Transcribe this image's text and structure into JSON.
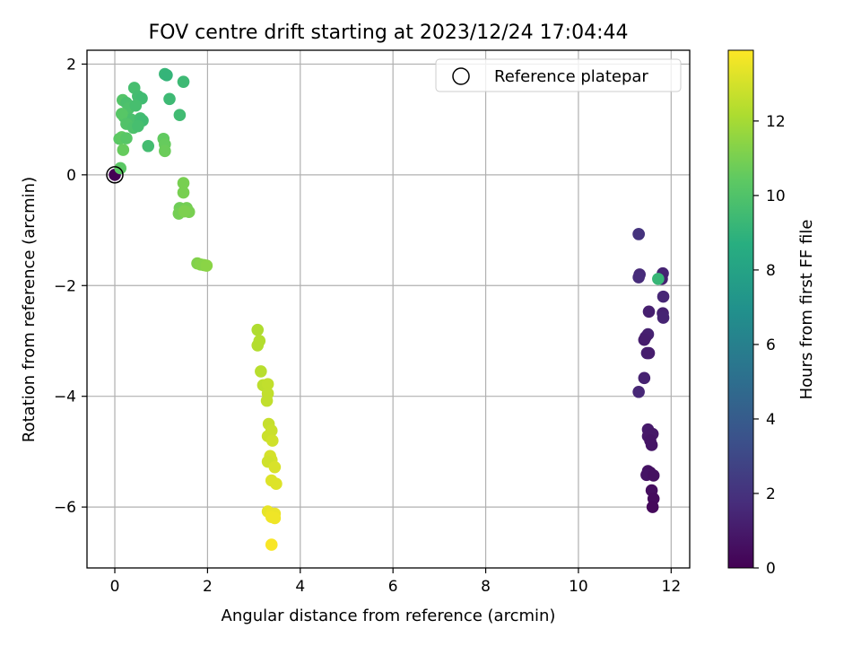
{
  "chart_data": {
    "type": "scatter",
    "title": "FOV centre drift starting at 2023/12/24 17:04:44",
    "xlabel": "Angular distance from reference (arcmin)",
    "ylabel": "Rotation from reference (arcmin)",
    "xlim": [
      -0.6,
      12.4
    ],
    "ylim": [
      -7.1,
      2.25
    ],
    "xticks": [
      0,
      2,
      4,
      6,
      8,
      10,
      12
    ],
    "yticks": [
      -6,
      -4,
      -2,
      0,
      2
    ],
    "grid": true,
    "legend": {
      "placement": "top-right",
      "entries": [
        "Reference platepar"
      ]
    },
    "reference_point": {
      "x": 0,
      "y": 0
    },
    "colorbar": {
      "label": "Hours from first FF file",
      "range": [
        0,
        13.9
      ],
      "ticks": [
        0,
        2,
        4,
        6,
        8,
        10,
        12
      ],
      "colormap": "viridis"
    },
    "points": [
      {
        "x": 0.0,
        "y": 0.0,
        "h": 0.0
      },
      {
        "x": 11.82,
        "y": -1.78,
        "h": 1.4
      },
      {
        "x": 11.8,
        "y": -1.88,
        "h": 1.3
      },
      {
        "x": 11.83,
        "y": -2.2,
        "h": 1.5
      },
      {
        "x": 11.82,
        "y": -2.5,
        "h": 1.3
      },
      {
        "x": 11.83,
        "y": -2.58,
        "h": 1.4
      },
      {
        "x": 11.52,
        "y": -2.47,
        "h": 1.2
      },
      {
        "x": 11.5,
        "y": -2.88,
        "h": 1.3
      },
      {
        "x": 11.45,
        "y": -2.93,
        "h": 1.2
      },
      {
        "x": 11.42,
        "y": -2.98,
        "h": 1.1
      },
      {
        "x": 11.48,
        "y": -3.22,
        "h": 1.2
      },
      {
        "x": 11.52,
        "y": -3.22,
        "h": 1.1
      },
      {
        "x": 11.42,
        "y": -3.67,
        "h": 1.3
      },
      {
        "x": 11.3,
        "y": -3.92,
        "h": 1.5
      },
      {
        "x": 11.5,
        "y": -4.6,
        "h": 1.0
      },
      {
        "x": 11.6,
        "y": -4.68,
        "h": 0.9
      },
      {
        "x": 11.5,
        "y": -4.72,
        "h": 0.9
      },
      {
        "x": 11.55,
        "y": -4.8,
        "h": 0.8
      },
      {
        "x": 11.58,
        "y": -4.88,
        "h": 0.8
      },
      {
        "x": 11.5,
        "y": -5.35,
        "h": 0.7
      },
      {
        "x": 11.55,
        "y": -5.38,
        "h": 0.6
      },
      {
        "x": 11.47,
        "y": -5.42,
        "h": 0.7
      },
      {
        "x": 11.62,
        "y": -5.43,
        "h": 0.6
      },
      {
        "x": 11.58,
        "y": -5.7,
        "h": 0.5
      },
      {
        "x": 11.62,
        "y": -5.85,
        "h": 0.4
      },
      {
        "x": 11.6,
        "y": -6.0,
        "h": 0.3
      },
      {
        "x": 11.3,
        "y": -1.07,
        "h": 2.2
      },
      {
        "x": 11.3,
        "y": -1.07,
        "h": 2.0
      },
      {
        "x": 11.32,
        "y": -1.8,
        "h": 1.6
      },
      {
        "x": 11.3,
        "y": -1.85,
        "h": 1.7
      },
      {
        "x": 11.72,
        "y": -1.88,
        "h": 9.2
      },
      {
        "x": 0.17,
        "y": 1.35,
        "h": 10.1
      },
      {
        "x": 0.25,
        "y": 1.3,
        "h": 9.8
      },
      {
        "x": 0.42,
        "y": 1.57,
        "h": 9.7
      },
      {
        "x": 0.5,
        "y": 1.42,
        "h": 9.6
      },
      {
        "x": 0.58,
        "y": 1.38,
        "h": 9.5
      },
      {
        "x": 0.3,
        "y": 1.2,
        "h": 9.9
      },
      {
        "x": 0.45,
        "y": 1.25,
        "h": 9.7
      },
      {
        "x": 0.2,
        "y": 1.05,
        "h": 10.0
      },
      {
        "x": 0.35,
        "y": 1.0,
        "h": 9.8
      },
      {
        "x": 0.55,
        "y": 1.02,
        "h": 9.6
      },
      {
        "x": 0.6,
        "y": 0.98,
        "h": 9.5
      },
      {
        "x": 0.15,
        "y": 1.1,
        "h": 10.2
      },
      {
        "x": 0.25,
        "y": 0.92,
        "h": 10.0
      },
      {
        "x": 0.4,
        "y": 0.85,
        "h": 9.9
      },
      {
        "x": 0.5,
        "y": 0.88,
        "h": 9.7
      },
      {
        "x": 0.1,
        "y": 0.65,
        "h": 10.3
      },
      {
        "x": 0.15,
        "y": 0.68,
        "h": 10.4
      },
      {
        "x": 0.25,
        "y": 0.66,
        "h": 10.2
      },
      {
        "x": 0.18,
        "y": 0.45,
        "h": 10.6
      },
      {
        "x": 0.12,
        "y": 0.12,
        "h": 10.3
      },
      {
        "x": 0.72,
        "y": 0.52,
        "h": 9.6
      },
      {
        "x": 1.08,
        "y": 1.82,
        "h": 9.2
      },
      {
        "x": 1.12,
        "y": 1.8,
        "h": 9.1
      },
      {
        "x": 1.48,
        "y": 1.68,
        "h": 9.4
      },
      {
        "x": 1.18,
        "y": 1.37,
        "h": 9.4
      },
      {
        "x": 1.4,
        "y": 1.08,
        "h": 9.5
      },
      {
        "x": 1.05,
        "y": 0.65,
        "h": 10.5
      },
      {
        "x": 1.08,
        "y": 0.55,
        "h": 10.6
      },
      {
        "x": 1.08,
        "y": 0.43,
        "h": 10.7
      },
      {
        "x": 1.48,
        "y": -0.15,
        "h": 11.0
      },
      {
        "x": 1.48,
        "y": -0.32,
        "h": 11.0
      },
      {
        "x": 1.4,
        "y": -0.6,
        "h": 10.8
      },
      {
        "x": 1.55,
        "y": -0.6,
        "h": 10.9
      },
      {
        "x": 1.38,
        "y": -0.7,
        "h": 10.9
      },
      {
        "x": 1.6,
        "y": -0.67,
        "h": 11.0
      },
      {
        "x": 1.5,
        "y": -0.66,
        "h": 11.1
      },
      {
        "x": 1.78,
        "y": -1.6,
        "h": 11.2
      },
      {
        "x": 1.85,
        "y": -1.62,
        "h": 11.3
      },
      {
        "x": 1.92,
        "y": -1.63,
        "h": 11.3
      },
      {
        "x": 1.98,
        "y": -1.64,
        "h": 11.4
      },
      {
        "x": 3.08,
        "y": -2.8,
        "h": 12.2
      },
      {
        "x": 3.12,
        "y": -3.0,
        "h": 12.3
      },
      {
        "x": 3.08,
        "y": -3.08,
        "h": 12.3
      },
      {
        "x": 3.15,
        "y": -3.55,
        "h": 12.4
      },
      {
        "x": 3.2,
        "y": -3.8,
        "h": 12.5
      },
      {
        "x": 3.3,
        "y": -3.78,
        "h": 12.6
      },
      {
        "x": 3.3,
        "y": -3.95,
        "h": 12.6
      },
      {
        "x": 3.28,
        "y": -4.08,
        "h": 12.6
      },
      {
        "x": 3.32,
        "y": -4.5,
        "h": 12.7
      },
      {
        "x": 3.38,
        "y": -4.62,
        "h": 12.8
      },
      {
        "x": 3.3,
        "y": -4.72,
        "h": 12.8
      },
      {
        "x": 3.4,
        "y": -4.8,
        "h": 12.9
      },
      {
        "x": 3.35,
        "y": -5.08,
        "h": 13.0
      },
      {
        "x": 3.38,
        "y": -5.15,
        "h": 13.0
      },
      {
        "x": 3.3,
        "y": -5.18,
        "h": 12.9
      },
      {
        "x": 3.45,
        "y": -5.28,
        "h": 13.1
      },
      {
        "x": 3.38,
        "y": -5.52,
        "h": 13.2
      },
      {
        "x": 3.48,
        "y": -5.58,
        "h": 13.2
      },
      {
        "x": 3.3,
        "y": -6.08,
        "h": 13.4
      },
      {
        "x": 3.38,
        "y": -6.12,
        "h": 13.5
      },
      {
        "x": 3.45,
        "y": -6.12,
        "h": 13.5
      },
      {
        "x": 3.38,
        "y": -6.18,
        "h": 13.6
      },
      {
        "x": 3.45,
        "y": -6.2,
        "h": 13.6
      },
      {
        "x": 3.38,
        "y": -6.68,
        "h": 13.8
      }
    ]
  }
}
